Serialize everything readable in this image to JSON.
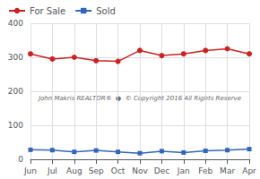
{
  "chart_data": {
    "type": "line",
    "categories": [
      "Jun",
      "Jul",
      "Aug",
      "Sep",
      "Oct",
      "Nov",
      "Dec",
      "Jan",
      "Feb",
      "Mar",
      "Apr"
    ],
    "series": [
      {
        "name": "For Sale",
        "color": "#cc2222",
        "marker": "circle",
        "values": [
          310,
          295,
          300,
          290,
          288,
          320,
          305,
          310,
          320,
          325,
          310
        ]
      },
      {
        "name": "Sold",
        "color": "#3366bb",
        "marker": "square",
        "values": [
          28,
          27,
          22,
          26,
          22,
          18,
          24,
          20,
          25,
          27,
          30
        ]
      }
    ],
    "ylim": [
      0,
      400
    ],
    "yticks": [
      0,
      100,
      200,
      300,
      400
    ],
    "grid": true,
    "legend": "upper left",
    "annotation": "John Makris REALTOR®  ●  © Copyright 2016 All Rights Reserve"
  }
}
